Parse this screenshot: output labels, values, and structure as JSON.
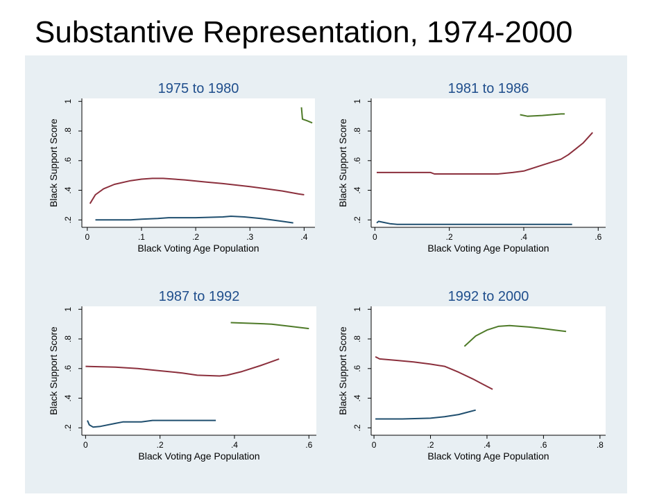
{
  "slide": {
    "title": "Substantive Representation, 1974-2000"
  },
  "colors": {
    "background": "#e8eff3",
    "plot_bg": "#ffffff",
    "title": "#1f4e8c",
    "navy": "#1f4e6e",
    "maroon": "#8b2f3c",
    "green": "#4e7a28"
  },
  "chart_data": [
    {
      "type": "line",
      "title": "1975 to 1980",
      "xlabel": "Black Voting Age Population",
      "ylabel": "Black Support Score",
      "xlim": [
        -0.01,
        0.42
      ],
      "ylim": [
        0.15,
        1.02
      ],
      "xticks": [
        0,
        0.1,
        0.2,
        0.3,
        0.4
      ],
      "xtick_labels": [
        "0",
        ".1",
        ".2",
        ".3",
        ".4"
      ],
      "yticks": [
        0.2,
        0.4,
        0.6,
        0.8,
        1
      ],
      "ytick_labels": [
        ".2",
        ".4",
        ".6",
        ".8",
        "1"
      ],
      "grid": false,
      "series": [
        {
          "color": "navy",
          "points": [
            [
              0.015,
              0.2
            ],
            [
              0.08,
              0.2
            ],
            [
              0.1,
              0.205
            ],
            [
              0.13,
              0.21
            ],
            [
              0.15,
              0.215
            ],
            [
              0.2,
              0.215
            ],
            [
              0.25,
              0.22
            ],
            [
              0.265,
              0.225
            ],
            [
              0.29,
              0.22
            ],
            [
              0.32,
              0.21
            ],
            [
              0.34,
              0.2
            ],
            [
              0.36,
              0.19
            ],
            [
              0.38,
              0.18
            ]
          ]
        },
        {
          "color": "maroon",
          "points": [
            [
              0.005,
              0.31
            ],
            [
              0.015,
              0.37
            ],
            [
              0.03,
              0.41
            ],
            [
              0.05,
              0.44
            ],
            [
              0.08,
              0.465
            ],
            [
              0.1,
              0.475
            ],
            [
              0.12,
              0.48
            ],
            [
              0.14,
              0.48
            ],
            [
              0.18,
              0.47
            ],
            [
              0.22,
              0.455
            ],
            [
              0.25,
              0.445
            ],
            [
              0.3,
              0.425
            ],
            [
              0.33,
              0.41
            ],
            [
              0.36,
              0.395
            ],
            [
              0.39,
              0.375
            ],
            [
              0.4,
              0.37
            ]
          ]
        },
        {
          "color": "green",
          "points": [
            [
              0.395,
              0.96
            ],
            [
              0.397,
              0.88
            ],
            [
              0.405,
              0.87
            ],
            [
              0.415,
              0.855
            ]
          ]
        }
      ]
    },
    {
      "type": "line",
      "title": "1981 to 1986",
      "xlabel": "Black Voting Age Population",
      "ylabel": "Black Support Score",
      "xlim": [
        -0.01,
        0.62
      ],
      "ylim": [
        0.15,
        1.02
      ],
      "xticks": [
        0,
        0.2,
        0.4,
        0.6
      ],
      "xtick_labels": [
        "0",
        ".2",
        ".4",
        ".6"
      ],
      "yticks": [
        0.2,
        0.4,
        0.6,
        0.8,
        1
      ],
      "ytick_labels": [
        ".2",
        ".4",
        ".6",
        ".8",
        "1"
      ],
      "grid": false,
      "series": [
        {
          "color": "navy",
          "points": [
            [
              0.005,
              0.18
            ],
            [
              0.01,
              0.19
            ],
            [
              0.02,
              0.185
            ],
            [
              0.04,
              0.175
            ],
            [
              0.06,
              0.17
            ],
            [
              0.2,
              0.17
            ],
            [
              0.4,
              0.17
            ],
            [
              0.53,
              0.17
            ]
          ]
        },
        {
          "color": "maroon",
          "points": [
            [
              0.005,
              0.52
            ],
            [
              0.15,
              0.52
            ],
            [
              0.16,
              0.51
            ],
            [
              0.2,
              0.51
            ],
            [
              0.33,
              0.51
            ],
            [
              0.37,
              0.52
            ],
            [
              0.4,
              0.53
            ],
            [
              0.45,
              0.57
            ],
            [
              0.5,
              0.61
            ],
            [
              0.52,
              0.64
            ],
            [
              0.54,
              0.68
            ],
            [
              0.56,
              0.72
            ],
            [
              0.585,
              0.79
            ]
          ]
        },
        {
          "color": "green",
          "points": [
            [
              0.39,
              0.91
            ],
            [
              0.41,
              0.9
            ],
            [
              0.45,
              0.905
            ],
            [
              0.5,
              0.915
            ],
            [
              0.51,
              0.915
            ]
          ]
        }
      ]
    },
    {
      "type": "line",
      "title": "1987 to 1992",
      "xlabel": "Black Voting Age Population",
      "ylabel": "Black Support Score",
      "xlim": [
        -0.01,
        0.62
      ],
      "ylim": [
        0.15,
        1.02
      ],
      "xticks": [
        0,
        0.2,
        0.4,
        0.6
      ],
      "xtick_labels": [
        "0",
        ".2",
        ".4",
        ".6"
      ],
      "yticks": [
        0.2,
        0.4,
        0.6,
        0.8,
        1
      ],
      "ytick_labels": [
        ".2",
        ".4",
        ".6",
        ".8",
        "1"
      ],
      "grid": false,
      "series": [
        {
          "color": "navy",
          "points": [
            [
              0.005,
              0.25
            ],
            [
              0.01,
              0.22
            ],
            [
              0.02,
              0.205
            ],
            [
              0.04,
              0.21
            ],
            [
              0.08,
              0.23
            ],
            [
              0.1,
              0.24
            ],
            [
              0.15,
              0.24
            ],
            [
              0.18,
              0.25
            ],
            [
              0.25,
              0.25
            ],
            [
              0.35,
              0.25
            ]
          ]
        },
        {
          "color": "maroon",
          "points": [
            [
              0.0,
              0.615
            ],
            [
              0.08,
              0.61
            ],
            [
              0.14,
              0.6
            ],
            [
              0.2,
              0.585
            ],
            [
              0.26,
              0.57
            ],
            [
              0.3,
              0.555
            ],
            [
              0.36,
              0.55
            ],
            [
              0.38,
              0.555
            ],
            [
              0.42,
              0.58
            ],
            [
              0.47,
              0.62
            ],
            [
              0.52,
              0.665
            ]
          ]
        },
        {
          "color": "green",
          "points": [
            [
              0.39,
              0.91
            ],
            [
              0.45,
              0.905
            ],
            [
              0.5,
              0.9
            ],
            [
              0.55,
              0.885
            ],
            [
              0.6,
              0.87
            ]
          ]
        }
      ]
    },
    {
      "type": "line",
      "title": "1992 to 2000",
      "xlabel": "Black Voting Age Population",
      "ylabel": "Black Support Score",
      "xlim": [
        -0.01,
        0.82
      ],
      "ylim": [
        0.15,
        1.02
      ],
      "xticks": [
        0,
        0.2,
        0.4,
        0.6,
        0.8
      ],
      "xtick_labels": [
        "0",
        ".2",
        ".4",
        ".6",
        ".8"
      ],
      "yticks": [
        0.2,
        0.4,
        0.6,
        0.8,
        1
      ],
      "ytick_labels": [
        ".2",
        ".4",
        ".6",
        ".8",
        "1"
      ],
      "grid": false,
      "series": [
        {
          "color": "navy",
          "points": [
            [
              0.005,
              0.26
            ],
            [
              0.1,
              0.26
            ],
            [
              0.2,
              0.265
            ],
            [
              0.25,
              0.275
            ],
            [
              0.3,
              0.29
            ],
            [
              0.33,
              0.305
            ],
            [
              0.36,
              0.32
            ]
          ]
        },
        {
          "color": "maroon",
          "points": [
            [
              0.005,
              0.68
            ],
            [
              0.02,
              0.665
            ],
            [
              0.08,
              0.655
            ],
            [
              0.14,
              0.645
            ],
            [
              0.2,
              0.63
            ],
            [
              0.25,
              0.615
            ],
            [
              0.3,
              0.575
            ],
            [
              0.35,
              0.53
            ],
            [
              0.38,
              0.5
            ],
            [
              0.42,
              0.46
            ]
          ]
        },
        {
          "color": "green",
          "points": [
            [
              0.32,
              0.75
            ],
            [
              0.36,
              0.82
            ],
            [
              0.4,
              0.86
            ],
            [
              0.44,
              0.885
            ],
            [
              0.48,
              0.89
            ],
            [
              0.55,
              0.88
            ],
            [
              0.6,
              0.87
            ],
            [
              0.64,
              0.86
            ],
            [
              0.68,
              0.85
            ]
          ]
        }
      ]
    }
  ]
}
